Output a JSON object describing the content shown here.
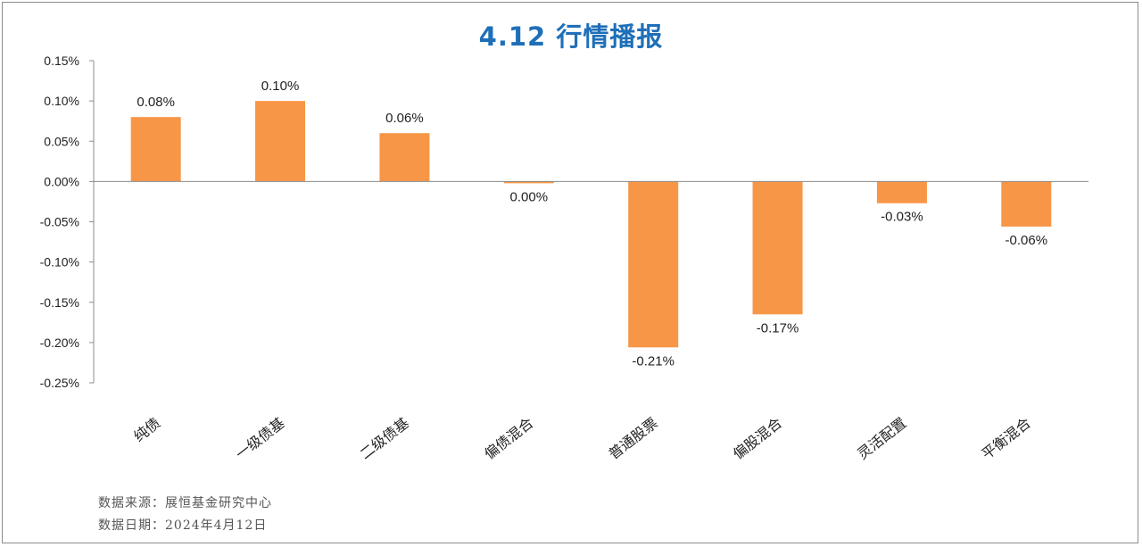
{
  "title": "4.12 行情播报",
  "source_line": "数据来源：展恒基金研究中心",
  "date_line": "数据日期：2024年4月12日",
  "colors": {
    "bar": "#f79646",
    "title": "#1f6fb8",
    "axis": "#8c8c8c"
  },
  "chart_data": {
    "type": "bar",
    "title": "4.12 行情播报",
    "categories": [
      "纯债",
      "一级债基",
      "二级债基",
      "偏债混合",
      "普通股票",
      "偏股混合",
      "灵活配置",
      "平衡混合"
    ],
    "values": [
      0.08,
      0.1,
      0.06,
      -0.002,
      -0.206,
      -0.165,
      -0.027,
      -0.056
    ],
    "data_labels": [
      "0.08%",
      "0.10%",
      "0.06%",
      "0.00%",
      "-0.21%",
      "-0.17%",
      "-0.03%",
      "-0.06%"
    ],
    "ylim": [
      -0.25,
      0.15
    ],
    "yticks": [
      0.15,
      0.1,
      0.05,
      0.0,
      -0.05,
      -0.1,
      -0.15,
      -0.2,
      -0.25
    ],
    "ytick_labels": [
      "0.15%",
      "0.10%",
      "0.05%",
      "0.00%",
      "-0.05%",
      "-0.10%",
      "-0.15%",
      "-0.20%",
      "-0.25%"
    ],
    "xlabel": "",
    "ylabel": "",
    "unit": "%",
    "grid": false,
    "legend": false
  }
}
